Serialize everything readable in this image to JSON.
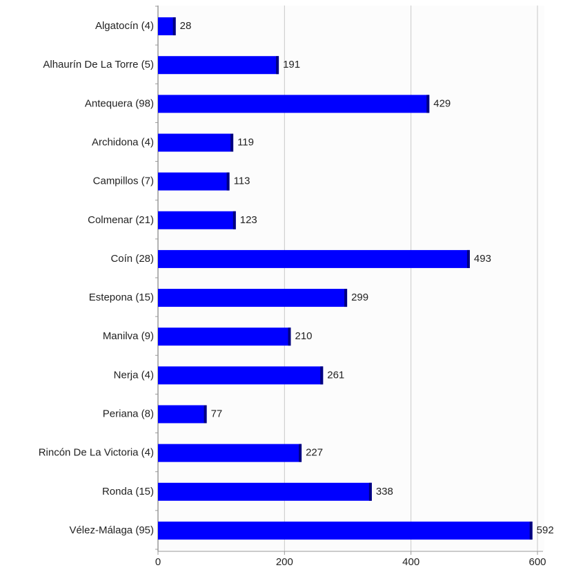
{
  "chart_data": {
    "type": "bar",
    "orientation": "horizontal",
    "categories": [
      "Algatocín (4)",
      "Alhaurín De La Torre (5)",
      "Antequera (98)",
      "Archidona (4)",
      "Campillos (7)",
      "Colmenar (21)",
      "Coín (28)",
      "Estepona (15)",
      "Manilva (9)",
      "Nerja (4)",
      "Periana (8)",
      "Rincón De La Victoria (4)",
      "Ronda (15)",
      "Vélez-Málaga (95)"
    ],
    "values": [
      28,
      191,
      429,
      119,
      113,
      123,
      493,
      299,
      210,
      261,
      77,
      227,
      338,
      592
    ],
    "color": "#0000ff",
    "xlim": [
      0,
      600
    ],
    "xticks": [
      0,
      200,
      400,
      600
    ],
    "grid": true
  }
}
